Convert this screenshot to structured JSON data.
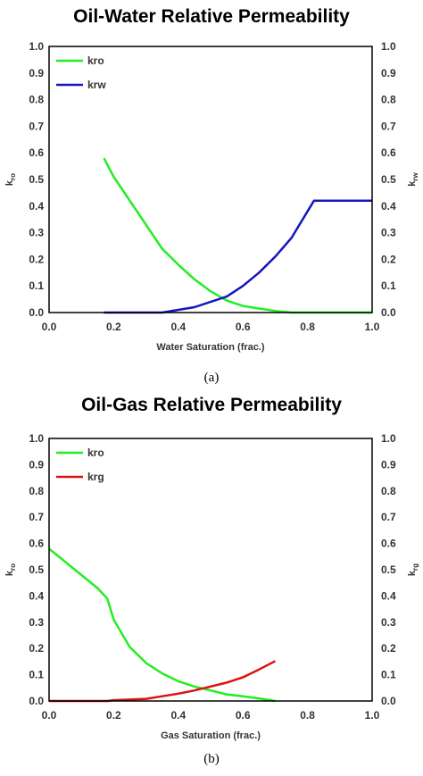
{
  "chart_data": [
    {
      "type": "line",
      "title": "Oil-Water Relative Permeability",
      "caption": "(a)",
      "xlabel": "Water Saturation (frac.)",
      "ylabel": "kro",
      "y2label": "krw",
      "xlim": [
        0,
        1
      ],
      "ylim": [
        0,
        1
      ],
      "y2lim": [
        0,
        1
      ],
      "xticks": [
        "0.0",
        "0.2",
        "0.4",
        "0.6",
        "0.8",
        "1.0"
      ],
      "yticks": [
        "0.0",
        "0.1",
        "0.2",
        "0.3",
        "0.4",
        "0.5",
        "0.6",
        "0.7",
        "0.8",
        "0.9",
        "1.0"
      ],
      "legend_position": "top-left",
      "grid": false,
      "series": [
        {
          "name": "kro",
          "color": "#22ee22",
          "axis": "left",
          "x": [
            0.17,
            0.2,
            0.25,
            0.3,
            0.35,
            0.4,
            0.45,
            0.5,
            0.55,
            0.6,
            0.65,
            0.7,
            0.75,
            0.8,
            1.0
          ],
          "y": [
            0.58,
            0.51,
            0.42,
            0.33,
            0.24,
            0.18,
            0.125,
            0.08,
            0.045,
            0.025,
            0.015,
            0.006,
            0.0,
            0.0,
            0.0
          ]
        },
        {
          "name": "krw",
          "color": "#1515c0",
          "axis": "right",
          "x": [
            0.17,
            0.35,
            0.45,
            0.55,
            0.6,
            0.65,
            0.7,
            0.75,
            0.82,
            1.0
          ],
          "y": [
            0.0,
            0.0,
            0.02,
            0.06,
            0.1,
            0.15,
            0.21,
            0.28,
            0.42,
            0.42
          ]
        }
      ]
    },
    {
      "type": "line",
      "title": "Oil-Gas Relative Permeability",
      "caption": "(b)",
      "xlabel": "Gas Saturation (frac.)",
      "ylabel": "kro",
      "y2label": "krg",
      "xlim": [
        0,
        1
      ],
      "ylim": [
        0,
        1
      ],
      "y2lim": [
        0,
        1
      ],
      "xticks": [
        "0.0",
        "0.2",
        "0.4",
        "0.6",
        "0.8",
        "1.0"
      ],
      "yticks": [
        "0.0",
        "0.1",
        "0.2",
        "0.3",
        "0.4",
        "0.5",
        "0.6",
        "0.7",
        "0.8",
        "0.9",
        "1.0"
      ],
      "legend_position": "top-left",
      "grid": false,
      "series": [
        {
          "name": "kro",
          "color": "#22ee22",
          "axis": "left",
          "x": [
            0.0,
            0.05,
            0.1,
            0.15,
            0.18,
            0.2,
            0.25,
            0.3,
            0.35,
            0.4,
            0.45,
            0.5,
            0.55,
            0.6,
            0.65,
            0.7
          ],
          "y": [
            0.58,
            0.53,
            0.48,
            0.43,
            0.39,
            0.31,
            0.205,
            0.145,
            0.105,
            0.075,
            0.055,
            0.04,
            0.025,
            0.018,
            0.01,
            0.0
          ]
        },
        {
          "name": "krg",
          "color": "#dd1111",
          "axis": "right",
          "x": [
            0.0,
            0.18,
            0.2,
            0.3,
            0.35,
            0.4,
            0.45,
            0.5,
            0.55,
            0.6,
            0.65,
            0.7
          ],
          "y": [
            0.0,
            0.0,
            0.003,
            0.008,
            0.018,
            0.028,
            0.04,
            0.055,
            0.07,
            0.09,
            0.12,
            0.152
          ]
        }
      ]
    }
  ]
}
